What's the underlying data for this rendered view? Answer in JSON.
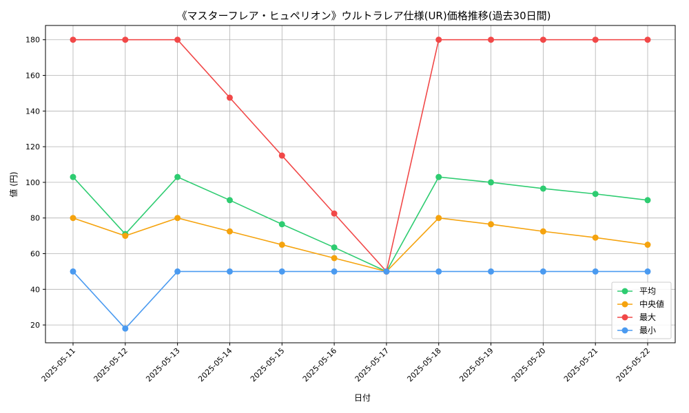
{
  "chart_data": {
    "type": "line",
    "title": "《マスターフレア・ヒュペリオン》ウルトラレア仕様(UR)価格推移(過去30日間)",
    "xlabel": "日付",
    "ylabel": "値 (円)",
    "categories": [
      "2025-05-11",
      "2025-05-12",
      "2025-05-13",
      "2025-05-14",
      "2025-05-15",
      "2025-05-16",
      "2025-05-17",
      "2025-05-18",
      "2025-05-19",
      "2025-05-20",
      "2025-05-21",
      "2025-05-22"
    ],
    "ylim": [
      10,
      188
    ],
    "yticks": [
      20,
      40,
      60,
      80,
      100,
      120,
      140,
      160,
      180
    ],
    "grid": true,
    "legend_position": "lower-right",
    "series": [
      {
        "name": "平均",
        "color": "#2ecc71",
        "values": [
          103,
          71,
          103,
          90,
          76.5,
          63.5,
          50,
          103,
          100,
          96.5,
          93.5,
          90
        ]
      },
      {
        "name": "中央値",
        "color": "#f5a30e",
        "values": [
          80,
          70,
          80,
          72.5,
          65,
          57.5,
          50,
          80,
          76.5,
          72.5,
          69,
          65
        ]
      },
      {
        "name": "最大",
        "color": "#f14848",
        "values": [
          180,
          180,
          180,
          147.5,
          115,
          82.5,
          50,
          180,
          180,
          180,
          180,
          180
        ]
      },
      {
        "name": "最小",
        "color": "#4a9af0",
        "values": [
          50,
          18,
          50,
          50,
          50,
          50,
          50,
          50,
          50,
          50,
          50,
          50
        ]
      }
    ]
  }
}
